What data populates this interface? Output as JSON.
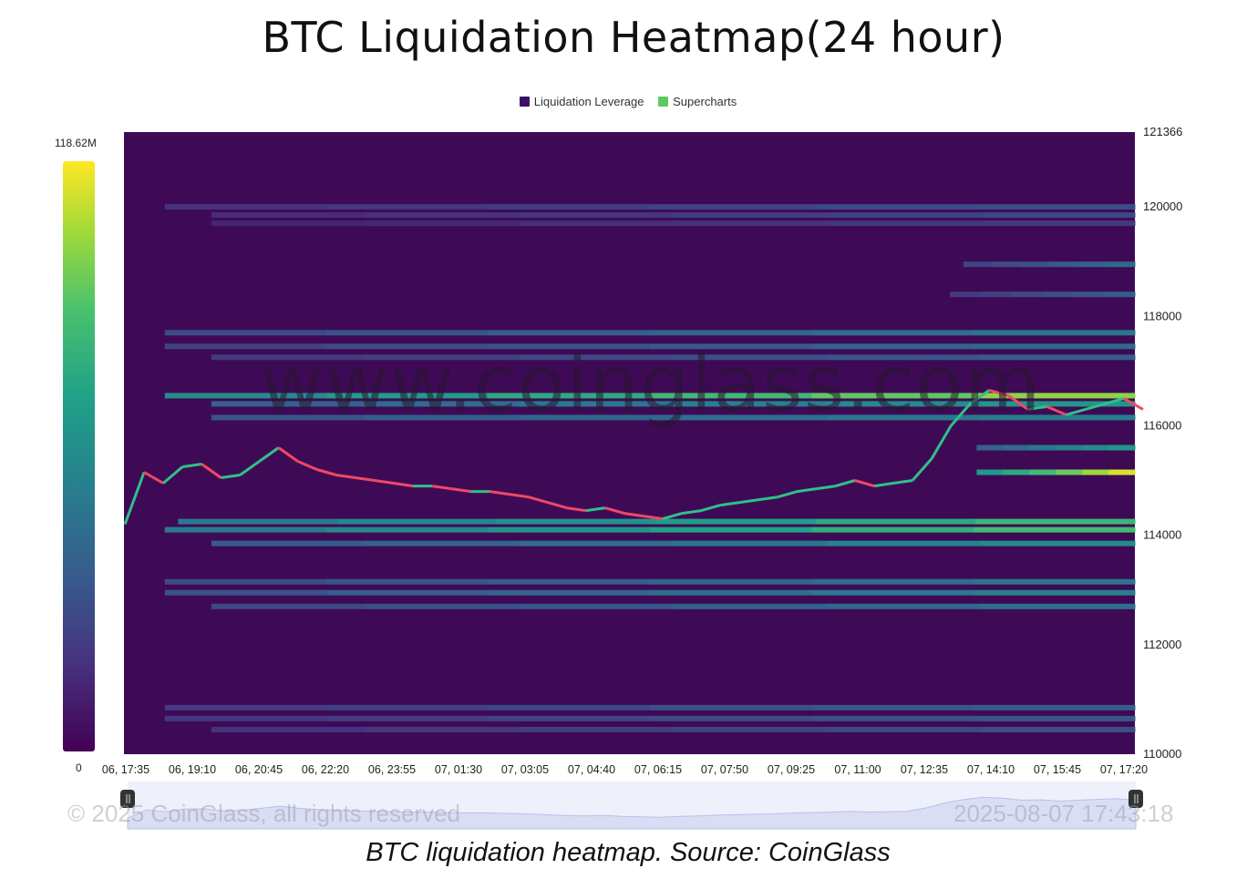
{
  "chart_data": {
    "type": "heatmap",
    "title": "BTC Liquidation Heatmap(24 hour)",
    "legend": [
      {
        "name": "Liquidation Leverage",
        "color": "#3b0f63"
      },
      {
        "name": "Supercharts",
        "color": "#5ec962"
      }
    ],
    "colorbar": {
      "max_label": "118.62M",
      "min_label": "0"
    },
    "x_ticks": [
      "06, 17:35",
      "06, 19:10",
      "06, 20:45",
      "06, 22:20",
      "06, 23:55",
      "07, 01:30",
      "07, 03:05",
      "07, 04:40",
      "07, 06:15",
      "07, 07:50",
      "07, 09:25",
      "07, 11:00",
      "07, 12:35",
      "07, 14:10",
      "07, 15:45",
      "07, 17:20"
    ],
    "y_ticks": [
      "121366",
      "120000",
      "118000",
      "116000",
      "114000",
      "112000",
      "110000"
    ],
    "y_range": [
      110000,
      121366
    ],
    "x_range_index": [
      0,
      15.2
    ],
    "bands": [
      {
        "price": 120000,
        "start": 0.6,
        "level": 0.25
      },
      {
        "price": 119850,
        "start": 1.3,
        "level": 0.22
      },
      {
        "price": 119700,
        "start": 1.3,
        "level": 0.18
      },
      {
        "price": 118950,
        "start": 12.6,
        "level": 0.35
      },
      {
        "price": 118400,
        "start": 12.4,
        "level": 0.3
      },
      {
        "price": 117700,
        "start": 0.6,
        "level": 0.4
      },
      {
        "price": 117450,
        "start": 0.6,
        "level": 0.35
      },
      {
        "price": 117250,
        "start": 1.3,
        "level": 0.3
      },
      {
        "price": 116550,
        "start": 0.6,
        "level": 0.85
      },
      {
        "price": 116400,
        "start": 1.3,
        "level": 0.55
      },
      {
        "price": 116150,
        "start": 1.3,
        "level": 0.45
      },
      {
        "price": 115600,
        "start": 12.8,
        "level": 0.55
      },
      {
        "price": 115150,
        "start": 12.8,
        "level": 0.95
      },
      {
        "price": 114250,
        "start": 0.8,
        "level": 0.7
      },
      {
        "price": 114100,
        "start": 0.6,
        "level": 0.72
      },
      {
        "price": 113850,
        "start": 1.3,
        "level": 0.5
      },
      {
        "price": 113150,
        "start": 0.6,
        "level": 0.4
      },
      {
        "price": 112950,
        "start": 0.6,
        "level": 0.45
      },
      {
        "price": 112700,
        "start": 1.3,
        "level": 0.38
      },
      {
        "price": 110850,
        "start": 0.6,
        "level": 0.3
      },
      {
        "price": 110650,
        "start": 0.6,
        "level": 0.28
      },
      {
        "price": 110450,
        "start": 1.3,
        "level": 0.25
      }
    ],
    "price_series": [
      114200,
      115150,
      114950,
      115250,
      115300,
      115050,
      115100,
      115350,
      115600,
      115350,
      115200,
      115100,
      115050,
      115000,
      114950,
      114900,
      114900,
      114850,
      114800,
      114800,
      114750,
      114700,
      114600,
      114500,
      114450,
      114500,
      114400,
      114350,
      114300,
      114400,
      114450,
      114550,
      114600,
      114650,
      114700,
      114800,
      114850,
      114900,
      115000,
      114900,
      114950,
      115000,
      115400,
      116000,
      116400,
      116650,
      116550,
      116300,
      116350,
      116200,
      116300,
      116400,
      116500,
      116300
    ]
  },
  "watermark": "www.coinglass.com",
  "copyright": "© 2025 CoinGlass, all rights reserved",
  "timestamp": "2025-08-07 17:43:18",
  "caption": "BTC liquidation heatmap. Source: CoinGlass"
}
